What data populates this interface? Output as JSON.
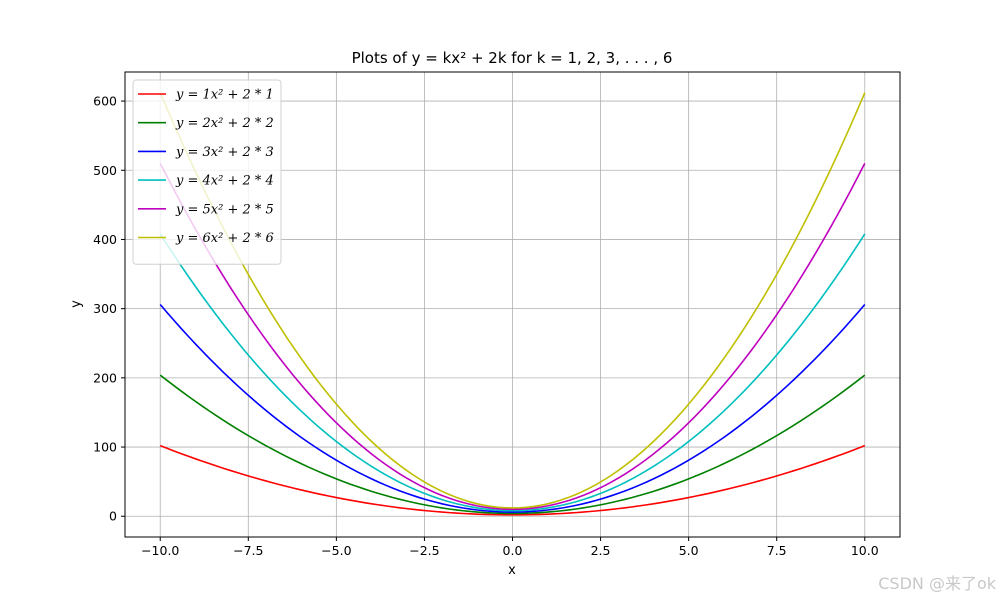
{
  "chart_data": {
    "type": "line",
    "title": "Plots of y = kx² + 2k for k = 1, 2, 3, . . . , 6",
    "xlabel": "x",
    "ylabel": "y",
    "xlim": [
      -11,
      11
    ],
    "ylim": [
      -30,
      642
    ],
    "xticks": [
      -10.0,
      -7.5,
      -5.0,
      -2.5,
      0.0,
      2.5,
      5.0,
      7.5,
      10.0
    ],
    "xtick_labels": [
      "−10.0",
      "−7.5",
      "−5.0",
      "−2.5",
      "0.0",
      "2.5",
      "5.0",
      "7.5",
      "10.0"
    ],
    "yticks": [
      0,
      100,
      200,
      300,
      400,
      500,
      600
    ],
    "ytick_labels": [
      "0",
      "100",
      "200",
      "300",
      "400",
      "500",
      "600"
    ],
    "grid": true,
    "legend_position": "upper-left",
    "x_range": [
      -10,
      10
    ],
    "series": [
      {
        "name": "y = 1x² + 2 * 1",
        "k": 1,
        "color": "#ff0000"
      },
      {
        "name": "y = 2x² + 2 * 2",
        "k": 2,
        "color": "#008000"
      },
      {
        "name": "y = 3x² + 2 * 3",
        "k": 3,
        "color": "#0000ff"
      },
      {
        "name": "y = 4x² + 2 * 4",
        "k": 4,
        "color": "#00bfbf"
      },
      {
        "name": "y = 5x² + 2 * 5",
        "k": 5,
        "color": "#bf00bf"
      },
      {
        "name": "y = 6x² + 2 * 6",
        "k": 6,
        "color": "#bfbf00"
      }
    ]
  },
  "watermark": "CSDN @来了ok"
}
